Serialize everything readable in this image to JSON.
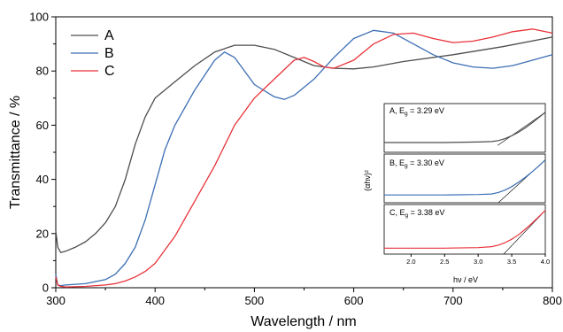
{
  "chart_data": [
    {
      "type": "line",
      "xlabel": "Wavelength / nm",
      "ylabel": "Transmittance / %",
      "xlim": [
        300,
        800
      ],
      "ylim": [
        0,
        100
      ],
      "xticks": [
        300,
        400,
        500,
        600,
        700,
        800
      ],
      "yticks": [
        0,
        20,
        40,
        60,
        80,
        100
      ],
      "legend": "top-left",
      "series": [
        {
          "name": "A",
          "color": "#4d4d4d",
          "x": [
            300,
            302,
            305,
            310,
            320,
            330,
            340,
            350,
            360,
            370,
            380,
            390,
            400,
            420,
            440,
            460,
            480,
            500,
            520,
            540,
            560,
            580,
            600,
            620,
            650,
            700,
            750,
            800
          ],
          "y": [
            21,
            15,
            13,
            13.5,
            15,
            17,
            20,
            24,
            30,
            40,
            53,
            63,
            70,
            76,
            82,
            87,
            89.5,
            89.5,
            88,
            85,
            82,
            81,
            80.8,
            81.5,
            83.5,
            86,
            89,
            92.5
          ]
        },
        {
          "name": "B",
          "color": "#3c6eb4",
          "x": [
            300,
            302,
            305,
            310,
            330,
            350,
            360,
            370,
            380,
            390,
            400,
            410,
            420,
            440,
            460,
            470,
            480,
            500,
            520,
            530,
            540,
            560,
            580,
            600,
            620,
            640,
            660,
            680,
            700,
            720,
            740,
            760,
            780,
            800
          ],
          "y": [
            5,
            1,
            0.8,
            1,
            1.5,
            3,
            5,
            9,
            15,
            25,
            38,
            51,
            60,
            73,
            84,
            87,
            85,
            75,
            70.5,
            69.5,
            71,
            77,
            85,
            92,
            95,
            94,
            90,
            86,
            83,
            81.5,
            81,
            82,
            84,
            86
          ]
        },
        {
          "name": "C",
          "color": "#e8333a",
          "x": [
            300,
            302,
            305,
            310,
            330,
            350,
            360,
            370,
            380,
            390,
            400,
            420,
            440,
            460,
            480,
            500,
            520,
            540,
            550,
            560,
            570,
            580,
            600,
            620,
            640,
            660,
            680,
            700,
            720,
            740,
            760,
            780,
            800
          ],
          "y": [
            4,
            1,
            0.5,
            0.3,
            0.5,
            1,
            1.5,
            2.5,
            4,
            6,
            9,
            19,
            32,
            45,
            60,
            70,
            77,
            84,
            85,
            83.5,
            81.5,
            81,
            84,
            90,
            93.5,
            94,
            92,
            90.5,
            91,
            92.5,
            94.5,
            95.5,
            94
          ]
        }
      ]
    },
    {
      "type": "line",
      "xlabel": "hν / eV",
      "ylabel": "(αhν)²",
      "xlim": [
        1.6,
        4.0
      ],
      "xticks": [
        2.0,
        2.5,
        3.0,
        3.5,
        4.0
      ],
      "xticklabels": [
        "2.0",
        "2.5",
        "3.0",
        "3.5",
        "4.0"
      ],
      "panels": [
        {
          "label_main": "A, E",
          "label_sub": "g",
          "label_value": " = 3.29 eV",
          "color": "#4d4d4d",
          "eg": 3.29,
          "x": [
            1.6,
            2.0,
            2.5,
            3.0,
            3.2,
            3.3,
            3.4,
            3.5,
            3.6,
            3.7,
            3.8,
            3.9,
            4.0
          ],
          "y": [
            0.2,
            0.2,
            0.2,
            0.21,
            0.22,
            0.24,
            0.28,
            0.34,
            0.41,
            0.5,
            0.6,
            0.71,
            0.82
          ],
          "tangent": [
            [
              3.29,
              0.14
            ],
            [
              4.0,
              0.82
            ]
          ]
        },
        {
          "label_main": "B, E",
          "label_sub": "g",
          "label_value": " = 3.30 eV",
          "color": "#3c6eb4",
          "eg": 3.3,
          "x": [
            1.6,
            2.0,
            2.5,
            3.0,
            3.2,
            3.3,
            3.4,
            3.5,
            3.6,
            3.7,
            3.8,
            3.9,
            4.0
          ],
          "y": [
            0.16,
            0.16,
            0.16,
            0.17,
            0.18,
            0.21,
            0.26,
            0.33,
            0.42,
            0.52,
            0.63,
            0.75,
            0.88
          ],
          "tangent": [
            [
              3.3,
              0.0
            ],
            [
              4.0,
              0.88
            ]
          ]
        },
        {
          "label_main": "C, E",
          "label_sub": "g",
          "label_value": " = 3.38 eV",
          "color": "#e8333a",
          "eg": 3.38,
          "x": [
            1.6,
            2.0,
            2.5,
            3.0,
            3.2,
            3.3,
            3.4,
            3.5,
            3.6,
            3.7,
            3.8,
            3.9,
            4.0
          ],
          "y": [
            0.12,
            0.12,
            0.12,
            0.13,
            0.15,
            0.18,
            0.23,
            0.3,
            0.39,
            0.5,
            0.62,
            0.75,
            0.88
          ],
          "tangent": [
            [
              3.38,
              0.0
            ],
            [
              4.0,
              0.88
            ]
          ]
        }
      ]
    }
  ]
}
